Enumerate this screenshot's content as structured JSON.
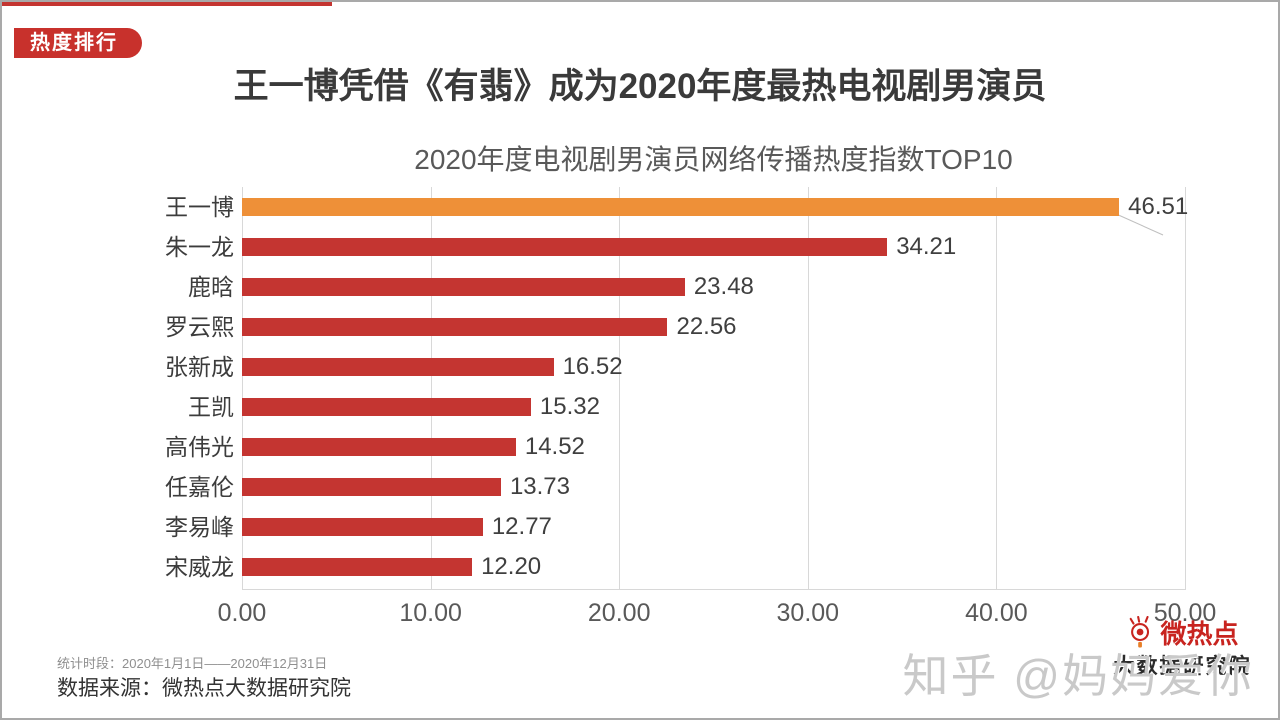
{
  "badge": {
    "label": "热度排行"
  },
  "title": "王一博凭借《有翡》成为2020年度最热电视剧男演员",
  "chart_data": {
    "type": "bar",
    "orientation": "horizontal",
    "title": "2020年度电视剧男演员网络传播热度指数TOP10",
    "categories": [
      "王一博",
      "朱一龙",
      "鹿晗",
      "罗云熙",
      "张新成",
      "王凯",
      "高伟光",
      "任嘉伦",
      "李易峰",
      "宋威龙"
    ],
    "values": [
      46.51,
      34.21,
      23.48,
      22.56,
      16.52,
      15.32,
      14.52,
      13.73,
      12.77,
      12.2
    ],
    "value_labels": [
      "46.51",
      "34.21",
      "23.48",
      "22.56",
      "16.52",
      "15.32",
      "14.52",
      "13.73",
      "12.77",
      "12.20"
    ],
    "x_ticks": [
      "0.00",
      "10.00",
      "20.00",
      "30.00",
      "40.00",
      "50.00"
    ],
    "xlim": [
      0,
      50
    ],
    "grid": true,
    "legend": "none",
    "highlight_index": 0,
    "bar_color": "#c43531",
    "highlight_color": "#ee9038"
  },
  "footer": {
    "period": "统计时段：2020年1月1日——2020年12月31日",
    "source": "数据来源：微热点大数据研究院"
  },
  "logo": {
    "name": "微热点",
    "subtitle": "大数据研究院",
    "icon": "weibo-eye-icon",
    "color": "#c8241f"
  },
  "watermark": "知乎 @妈妈爱你",
  "colors": {
    "accent_red": "#c43531",
    "bar_red": "#c43531",
    "bar_orange": "#ee9038",
    "title_text": "#3a3a3a",
    "subtitle_text": "#595959",
    "gridline": "#d8d8d8",
    "watermark_gray": "#c9c9c9"
  }
}
